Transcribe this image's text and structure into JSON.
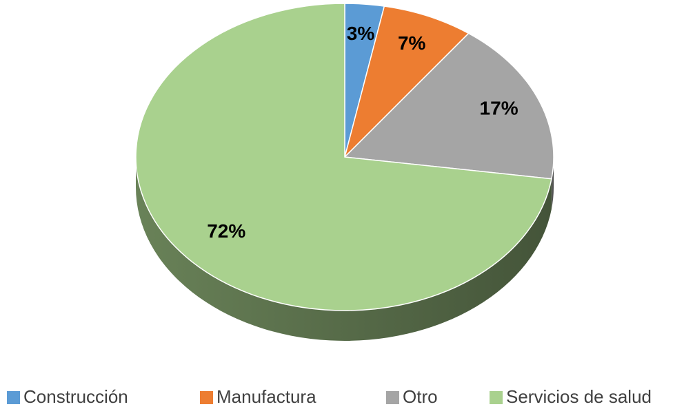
{
  "chart_data": {
    "type": "pie",
    "categories": [
      "Construcción",
      "Manufactura",
      "Otro",
      "Servicios de salud"
    ],
    "values": [
      3,
      7,
      17,
      72
    ],
    "value_labels": [
      "3%",
      "7%",
      "17%",
      "72%"
    ],
    "colors": [
      "#5b9bd5",
      "#ed7d31",
      "#a5a5a5",
      "#a9d18e"
    ],
    "legend": "bottom"
  }
}
